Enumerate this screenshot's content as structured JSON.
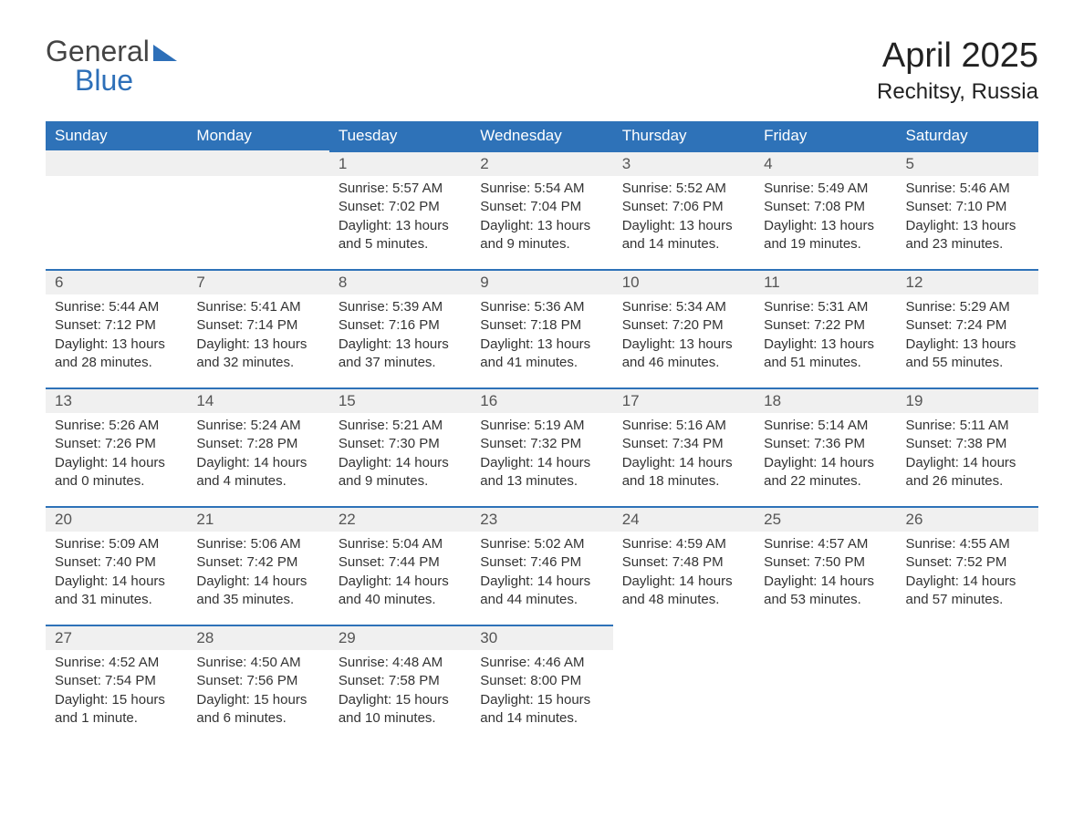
{
  "brand": {
    "general": "General",
    "blue": "Blue"
  },
  "title": "April 2025",
  "location": "Rechitsy, Russia",
  "colors": {
    "accent": "#2e72b8",
    "header_bg": "#2e72b8",
    "header_text": "#ffffff",
    "daybar_bg": "#f0f0f0",
    "body_bg": "#ffffff",
    "text": "#333333"
  },
  "typography": {
    "title_fontsize": 38,
    "subtitle_fontsize": 24,
    "header_fontsize": 17,
    "body_fontsize": 15
  },
  "days_of_week": [
    "Sunday",
    "Monday",
    "Tuesday",
    "Wednesday",
    "Thursday",
    "Friday",
    "Saturday"
  ],
  "weeks": [
    [
      null,
      null,
      {
        "n": "1",
        "sr": "Sunrise: 5:57 AM",
        "ss": "Sunset: 7:02 PM",
        "d1": "Daylight: 13 hours",
        "d2": "and 5 minutes."
      },
      {
        "n": "2",
        "sr": "Sunrise: 5:54 AM",
        "ss": "Sunset: 7:04 PM",
        "d1": "Daylight: 13 hours",
        "d2": "and 9 minutes."
      },
      {
        "n": "3",
        "sr": "Sunrise: 5:52 AM",
        "ss": "Sunset: 7:06 PM",
        "d1": "Daylight: 13 hours",
        "d2": "and 14 minutes."
      },
      {
        "n": "4",
        "sr": "Sunrise: 5:49 AM",
        "ss": "Sunset: 7:08 PM",
        "d1": "Daylight: 13 hours",
        "d2": "and 19 minutes."
      },
      {
        "n": "5",
        "sr": "Sunrise: 5:46 AM",
        "ss": "Sunset: 7:10 PM",
        "d1": "Daylight: 13 hours",
        "d2": "and 23 minutes."
      }
    ],
    [
      {
        "n": "6",
        "sr": "Sunrise: 5:44 AM",
        "ss": "Sunset: 7:12 PM",
        "d1": "Daylight: 13 hours",
        "d2": "and 28 minutes."
      },
      {
        "n": "7",
        "sr": "Sunrise: 5:41 AM",
        "ss": "Sunset: 7:14 PM",
        "d1": "Daylight: 13 hours",
        "d2": "and 32 minutes."
      },
      {
        "n": "8",
        "sr": "Sunrise: 5:39 AM",
        "ss": "Sunset: 7:16 PM",
        "d1": "Daylight: 13 hours",
        "d2": "and 37 minutes."
      },
      {
        "n": "9",
        "sr": "Sunrise: 5:36 AM",
        "ss": "Sunset: 7:18 PM",
        "d1": "Daylight: 13 hours",
        "d2": "and 41 minutes."
      },
      {
        "n": "10",
        "sr": "Sunrise: 5:34 AM",
        "ss": "Sunset: 7:20 PM",
        "d1": "Daylight: 13 hours",
        "d2": "and 46 minutes."
      },
      {
        "n": "11",
        "sr": "Sunrise: 5:31 AM",
        "ss": "Sunset: 7:22 PM",
        "d1": "Daylight: 13 hours",
        "d2": "and 51 minutes."
      },
      {
        "n": "12",
        "sr": "Sunrise: 5:29 AM",
        "ss": "Sunset: 7:24 PM",
        "d1": "Daylight: 13 hours",
        "d2": "and 55 minutes."
      }
    ],
    [
      {
        "n": "13",
        "sr": "Sunrise: 5:26 AM",
        "ss": "Sunset: 7:26 PM",
        "d1": "Daylight: 14 hours",
        "d2": "and 0 minutes."
      },
      {
        "n": "14",
        "sr": "Sunrise: 5:24 AM",
        "ss": "Sunset: 7:28 PM",
        "d1": "Daylight: 14 hours",
        "d2": "and 4 minutes."
      },
      {
        "n": "15",
        "sr": "Sunrise: 5:21 AM",
        "ss": "Sunset: 7:30 PM",
        "d1": "Daylight: 14 hours",
        "d2": "and 9 minutes."
      },
      {
        "n": "16",
        "sr": "Sunrise: 5:19 AM",
        "ss": "Sunset: 7:32 PM",
        "d1": "Daylight: 14 hours",
        "d2": "and 13 minutes."
      },
      {
        "n": "17",
        "sr": "Sunrise: 5:16 AM",
        "ss": "Sunset: 7:34 PM",
        "d1": "Daylight: 14 hours",
        "d2": "and 18 minutes."
      },
      {
        "n": "18",
        "sr": "Sunrise: 5:14 AM",
        "ss": "Sunset: 7:36 PM",
        "d1": "Daylight: 14 hours",
        "d2": "and 22 minutes."
      },
      {
        "n": "19",
        "sr": "Sunrise: 5:11 AM",
        "ss": "Sunset: 7:38 PM",
        "d1": "Daylight: 14 hours",
        "d2": "and 26 minutes."
      }
    ],
    [
      {
        "n": "20",
        "sr": "Sunrise: 5:09 AM",
        "ss": "Sunset: 7:40 PM",
        "d1": "Daylight: 14 hours",
        "d2": "and 31 minutes."
      },
      {
        "n": "21",
        "sr": "Sunrise: 5:06 AM",
        "ss": "Sunset: 7:42 PM",
        "d1": "Daylight: 14 hours",
        "d2": "and 35 minutes."
      },
      {
        "n": "22",
        "sr": "Sunrise: 5:04 AM",
        "ss": "Sunset: 7:44 PM",
        "d1": "Daylight: 14 hours",
        "d2": "and 40 minutes."
      },
      {
        "n": "23",
        "sr": "Sunrise: 5:02 AM",
        "ss": "Sunset: 7:46 PM",
        "d1": "Daylight: 14 hours",
        "d2": "and 44 minutes."
      },
      {
        "n": "24",
        "sr": "Sunrise: 4:59 AM",
        "ss": "Sunset: 7:48 PM",
        "d1": "Daylight: 14 hours",
        "d2": "and 48 minutes."
      },
      {
        "n": "25",
        "sr": "Sunrise: 4:57 AM",
        "ss": "Sunset: 7:50 PM",
        "d1": "Daylight: 14 hours",
        "d2": "and 53 minutes."
      },
      {
        "n": "26",
        "sr": "Sunrise: 4:55 AM",
        "ss": "Sunset: 7:52 PM",
        "d1": "Daylight: 14 hours",
        "d2": "and 57 minutes."
      }
    ],
    [
      {
        "n": "27",
        "sr": "Sunrise: 4:52 AM",
        "ss": "Sunset: 7:54 PM",
        "d1": "Daylight: 15 hours",
        "d2": "and 1 minute."
      },
      {
        "n": "28",
        "sr": "Sunrise: 4:50 AM",
        "ss": "Sunset: 7:56 PM",
        "d1": "Daylight: 15 hours",
        "d2": "and 6 minutes."
      },
      {
        "n": "29",
        "sr": "Sunrise: 4:48 AM",
        "ss": "Sunset: 7:58 PM",
        "d1": "Daylight: 15 hours",
        "d2": "and 10 minutes."
      },
      {
        "n": "30",
        "sr": "Sunrise: 4:46 AM",
        "ss": "Sunset: 8:00 PM",
        "d1": "Daylight: 15 hours",
        "d2": "and 14 minutes."
      },
      null,
      null,
      null
    ]
  ]
}
